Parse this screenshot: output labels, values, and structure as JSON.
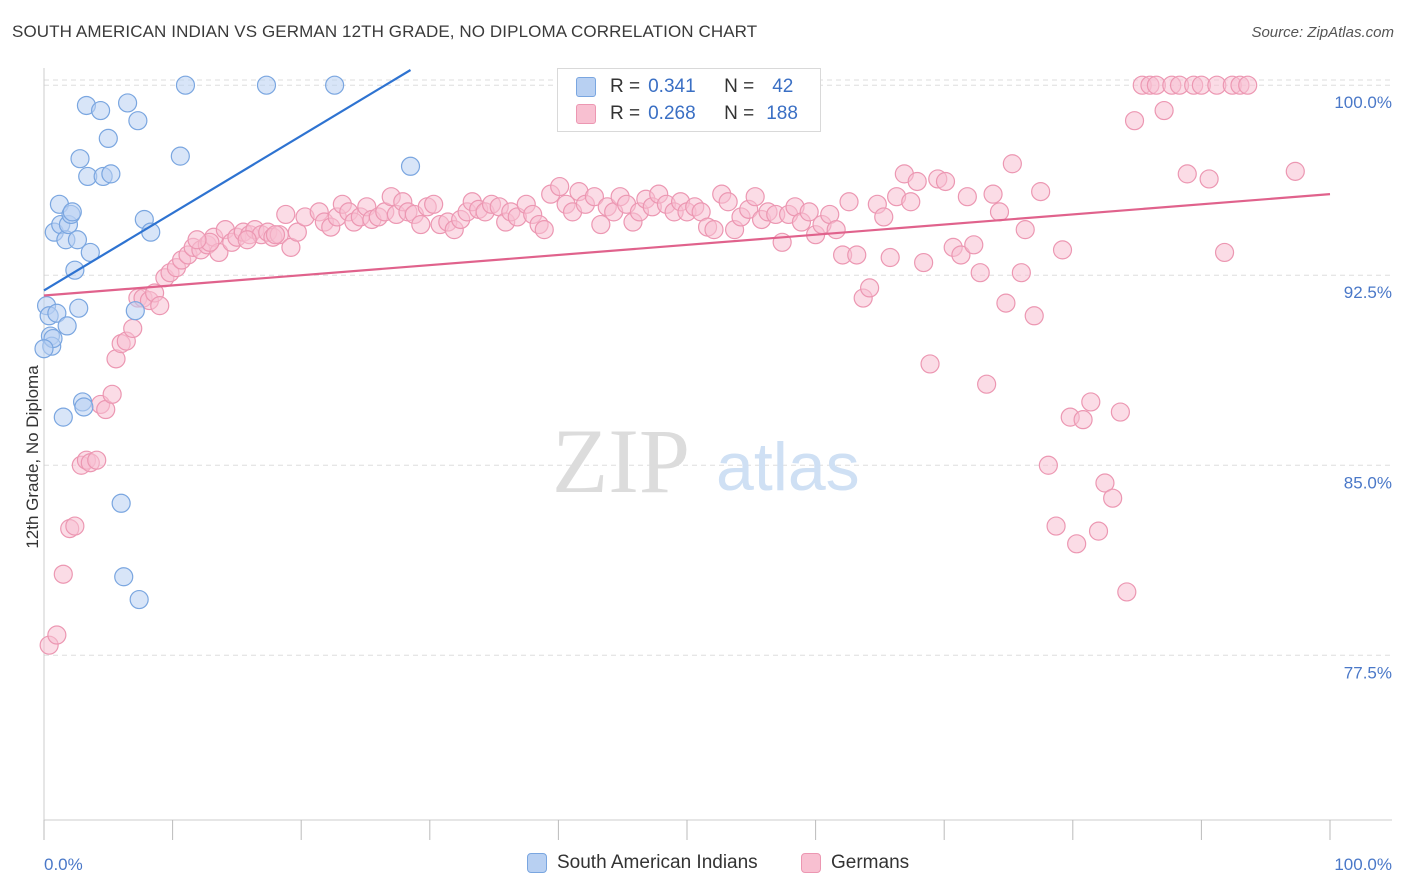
{
  "title": "SOUTH AMERICAN INDIAN VS GERMAN 12TH GRADE, NO DIPLOMA CORRELATION CHART",
  "source": "Source: ZipAtlas.com",
  "watermark": {
    "zip": "ZIP",
    "atlas": "atlas"
  },
  "colors": {
    "blue_fill": "#b8d0f2",
    "blue_stroke": "#7aa6e0",
    "blue_line": "#2e73d1",
    "pink_fill": "#f8c0d1",
    "pink_stroke": "#ec97b2",
    "pink_line": "#e0628c",
    "grid": "#dddddd",
    "tick_label": "#4a78c8"
  },
  "legend": {
    "rows": [
      {
        "r_label": "R =",
        "r_value": "0.341",
        "n_label": "N =",
        "n_value": "42"
      },
      {
        "r_label": "R =",
        "r_value": "0.268",
        "n_label": "N =",
        "n_value": "188"
      }
    ]
  },
  "bottom_legend": [
    "South American Indians",
    "Germans"
  ],
  "chart_data": {
    "type": "scatter",
    "title": "SOUTH AMERICAN INDIAN VS GERMAN 12TH GRADE, NO DIPLOMA CORRELATION CHART",
    "xlabel": "",
    "ylabel": "12th Grade, No Diploma",
    "x_ticks": [
      "0.0%",
      "100.0%"
    ],
    "y_ticks": [
      "100.0%",
      "92.5%",
      "85.0%",
      "77.5%"
    ],
    "y_tick_values": [
      100.0,
      92.5,
      85.0,
      77.5
    ],
    "xlim": [
      0,
      100
    ],
    "ylim": [
      71.0,
      100.6
    ],
    "grid": true,
    "legend_position": "top-center",
    "series": [
      {
        "name": "South American Indians",
        "color": "blue",
        "trend": {
          "x0": 0.0,
          "y0": 91.9,
          "x1": 28.5,
          "y1": 100.6
        },
        "points": [
          [
            0.2,
            91.3
          ],
          [
            0.4,
            90.9
          ],
          [
            0.5,
            90.1
          ],
          [
            0.6,
            89.7
          ],
          [
            0.7,
            90.0
          ],
          [
            0.8,
            94.2
          ],
          [
            1.0,
            91.0
          ],
          [
            1.2,
            95.3
          ],
          [
            1.3,
            94.5
          ],
          [
            1.5,
            86.9
          ],
          [
            1.7,
            93.9
          ],
          [
            1.9,
            94.5
          ],
          [
            1.8,
            90.5
          ],
          [
            2.1,
            94.9
          ],
          [
            2.2,
            95.0
          ],
          [
            2.4,
            92.7
          ],
          [
            2.6,
            93.9
          ],
          [
            2.7,
            91.2
          ],
          [
            2.8,
            97.1
          ],
          [
            3.0,
            87.5
          ],
          [
            3.1,
            87.3
          ],
          [
            3.3,
            99.2
          ],
          [
            3.4,
            96.4
          ],
          [
            3.6,
            93.4
          ],
          [
            4.4,
            99.0
          ],
          [
            4.6,
            96.4
          ],
          [
            5.0,
            97.9
          ],
          [
            5.2,
            96.5
          ],
          [
            6.0,
            83.5
          ],
          [
            6.2,
            80.6
          ],
          [
            6.5,
            99.3
          ],
          [
            7.1,
            91.1
          ],
          [
            7.3,
            98.6
          ],
          [
            7.4,
            79.7
          ],
          [
            7.8,
            94.7
          ],
          [
            8.3,
            94.2
          ],
          [
            10.6,
            97.2
          ],
          [
            11.0,
            100.0
          ],
          [
            17.3,
            100.0
          ],
          [
            22.6,
            100.0
          ],
          [
            28.5,
            96.8
          ],
          [
            0.0,
            89.6
          ]
        ]
      },
      {
        "name": "Germans",
        "color": "pink",
        "trend": {
          "x0": 0.0,
          "y0": 91.7,
          "x1": 100.0,
          "y1": 95.7
        },
        "points": [
          [
            0.4,
            77.9
          ],
          [
            1.0,
            78.3
          ],
          [
            1.5,
            80.7
          ],
          [
            2.0,
            82.5
          ],
          [
            2.4,
            82.6
          ],
          [
            2.9,
            85.0
          ],
          [
            3.3,
            85.2
          ],
          [
            3.6,
            85.1
          ],
          [
            4.1,
            85.2
          ],
          [
            4.4,
            87.4
          ],
          [
            4.8,
            87.2
          ],
          [
            5.3,
            87.8
          ],
          [
            5.6,
            89.2
          ],
          [
            6.0,
            89.8
          ],
          [
            6.4,
            89.9
          ],
          [
            6.9,
            90.4
          ],
          [
            7.3,
            91.6
          ],
          [
            7.7,
            91.6
          ],
          [
            8.2,
            91.5
          ],
          [
            8.6,
            91.8
          ],
          [
            9.0,
            91.3
          ],
          [
            9.4,
            92.4
          ],
          [
            9.8,
            92.6
          ],
          [
            10.3,
            92.8
          ],
          [
            10.7,
            93.1
          ],
          [
            11.2,
            93.3
          ],
          [
            11.6,
            93.6
          ],
          [
            12.2,
            93.5
          ],
          [
            12.7,
            93.7
          ],
          [
            13.2,
            94.0
          ],
          [
            13.6,
            93.4
          ],
          [
            14.1,
            94.3
          ],
          [
            14.6,
            93.8
          ],
          [
            15.0,
            94.0
          ],
          [
            15.5,
            94.2
          ],
          [
            16.0,
            94.1
          ],
          [
            16.4,
            94.3
          ],
          [
            16.9,
            94.1
          ],
          [
            17.4,
            94.2
          ],
          [
            17.8,
            94.0
          ],
          [
            18.3,
            94.1
          ],
          [
            18.8,
            94.9
          ],
          [
            19.2,
            93.6
          ],
          [
            19.7,
            94.2
          ],
          [
            20.3,
            94.8
          ],
          [
            21.4,
            95.0
          ],
          [
            21.8,
            94.6
          ],
          [
            22.3,
            94.4
          ],
          [
            22.8,
            94.8
          ],
          [
            23.2,
            95.3
          ],
          [
            23.7,
            95.0
          ],
          [
            24.1,
            94.6
          ],
          [
            24.6,
            94.8
          ],
          [
            25.1,
            95.2
          ],
          [
            25.5,
            94.7
          ],
          [
            26.0,
            94.8
          ],
          [
            26.5,
            95.0
          ],
          [
            27.0,
            95.6
          ],
          [
            27.4,
            94.9
          ],
          [
            27.9,
            95.4
          ],
          [
            28.3,
            95.0
          ],
          [
            28.8,
            94.9
          ],
          [
            29.3,
            94.5
          ],
          [
            29.8,
            95.2
          ],
          [
            30.3,
            95.3
          ],
          [
            30.8,
            94.5
          ],
          [
            31.4,
            94.6
          ],
          [
            31.9,
            94.3
          ],
          [
            32.4,
            94.7
          ],
          [
            32.9,
            95.0
          ],
          [
            33.3,
            95.4
          ],
          [
            33.8,
            95.1
          ],
          [
            34.3,
            95.0
          ],
          [
            34.8,
            95.3
          ],
          [
            35.4,
            95.2
          ],
          [
            35.9,
            94.6
          ],
          [
            36.3,
            95.0
          ],
          [
            36.8,
            94.8
          ],
          [
            37.5,
            95.3
          ],
          [
            38.0,
            94.9
          ],
          [
            38.5,
            94.5
          ],
          [
            38.9,
            94.3
          ],
          [
            39.4,
            95.7
          ],
          [
            40.1,
            96.0
          ],
          [
            40.6,
            95.3
          ],
          [
            41.1,
            95.0
          ],
          [
            41.6,
            95.8
          ],
          [
            42.1,
            95.3
          ],
          [
            42.8,
            95.6
          ],
          [
            43.3,
            94.5
          ],
          [
            43.8,
            95.2
          ],
          [
            44.3,
            95.0
          ],
          [
            44.8,
            95.6
          ],
          [
            45.3,
            95.3
          ],
          [
            45.8,
            94.6
          ],
          [
            46.3,
            95.0
          ],
          [
            46.8,
            95.5
          ],
          [
            47.3,
            95.2
          ],
          [
            47.8,
            95.7
          ],
          [
            48.4,
            95.3
          ],
          [
            49.0,
            95.0
          ],
          [
            49.5,
            95.4
          ],
          [
            50.0,
            95.0
          ],
          [
            50.6,
            95.2
          ],
          [
            51.1,
            95.0
          ],
          [
            51.6,
            94.4
          ],
          [
            52.1,
            94.3
          ],
          [
            52.7,
            95.7
          ],
          [
            53.2,
            95.4
          ],
          [
            53.7,
            94.3
          ],
          [
            54.2,
            94.8
          ],
          [
            54.8,
            95.1
          ],
          [
            55.3,
            95.6
          ],
          [
            55.8,
            94.7
          ],
          [
            56.3,
            95.0
          ],
          [
            56.9,
            94.9
          ],
          [
            57.4,
            93.8
          ],
          [
            57.9,
            94.9
          ],
          [
            58.4,
            95.2
          ],
          [
            58.9,
            94.6
          ],
          [
            59.5,
            95.0
          ],
          [
            60.0,
            94.1
          ],
          [
            60.5,
            94.5
          ],
          [
            61.1,
            94.9
          ],
          [
            61.6,
            94.3
          ],
          [
            62.1,
            93.3
          ],
          [
            62.6,
            95.4
          ],
          [
            63.2,
            93.3
          ],
          [
            63.7,
            91.6
          ],
          [
            64.2,
            92.0
          ],
          [
            64.8,
            95.3
          ],
          [
            65.3,
            94.8
          ],
          [
            65.8,
            93.2
          ],
          [
            66.3,
            95.6
          ],
          [
            66.9,
            96.5
          ],
          [
            67.4,
            95.4
          ],
          [
            67.9,
            96.2
          ],
          [
            68.4,
            93.0
          ],
          [
            68.9,
            89.0
          ],
          [
            69.5,
            96.3
          ],
          [
            70.1,
            96.2
          ],
          [
            70.7,
            93.6
          ],
          [
            71.3,
            93.3
          ],
          [
            71.8,
            95.6
          ],
          [
            72.3,
            93.7
          ],
          [
            72.8,
            92.6
          ],
          [
            73.3,
            88.2
          ],
          [
            73.8,
            95.7
          ],
          [
            74.3,
            95.0
          ],
          [
            74.8,
            91.4
          ],
          [
            75.3,
            96.9
          ],
          [
            76.0,
            92.6
          ],
          [
            76.3,
            94.3
          ],
          [
            77.0,
            90.9
          ],
          [
            77.5,
            95.8
          ],
          [
            78.1,
            85.0
          ],
          [
            78.7,
            82.6
          ],
          [
            79.2,
            93.5
          ],
          [
            79.8,
            86.9
          ],
          [
            80.3,
            81.9
          ],
          [
            80.8,
            86.8
          ],
          [
            81.4,
            87.5
          ],
          [
            82.0,
            82.4
          ],
          [
            82.5,
            84.3
          ],
          [
            83.1,
            83.7
          ],
          [
            83.7,
            87.1
          ],
          [
            84.2,
            80.0
          ],
          [
            84.8,
            98.6
          ],
          [
            85.4,
            100.0
          ],
          [
            86.0,
            100.0
          ],
          [
            86.5,
            100.0
          ],
          [
            87.1,
            99.0
          ],
          [
            87.7,
            100.0
          ],
          [
            88.3,
            100.0
          ],
          [
            88.9,
            96.5
          ],
          [
            89.4,
            100.0
          ],
          [
            90.0,
            100.0
          ],
          [
            90.6,
            96.3
          ],
          [
            91.2,
            100.0
          ],
          [
            91.8,
            93.4
          ],
          [
            92.4,
            100.0
          ],
          [
            93.0,
            100.0
          ],
          [
            93.6,
            100.0
          ],
          [
            97.3,
            96.6
          ],
          [
            18.0,
            94.1
          ],
          [
            15.8,
            93.9
          ],
          [
            12.9,
            93.8
          ],
          [
            11.9,
            93.9
          ]
        ]
      }
    ]
  }
}
